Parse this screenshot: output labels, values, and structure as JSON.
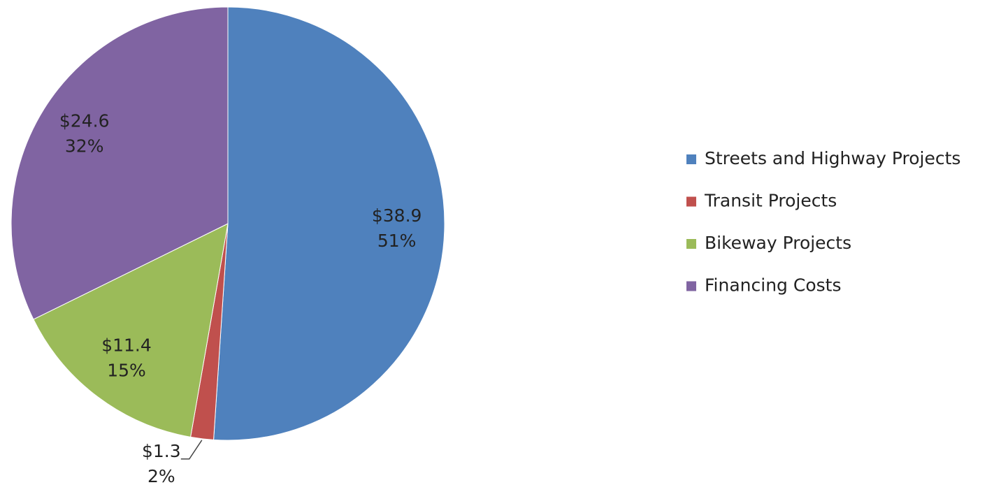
{
  "chart_data": {
    "type": "pie",
    "categories": [
      "Streets and Highway Projects",
      "Transit Projects",
      "Bikeway Projects",
      "Financing Costs"
    ],
    "values": [
      38.9,
      1.3,
      11.4,
      24.6
    ],
    "value_labels": [
      "$38.9",
      "$1.3",
      "$11.4",
      "$24.6"
    ],
    "percent_labels": [
      "51%",
      "2%",
      "15%",
      "32%"
    ],
    "colors": [
      "#4f81bd",
      "#c0504d",
      "#9bbb59",
      "#8064a2"
    ],
    "legend": "right"
  }
}
